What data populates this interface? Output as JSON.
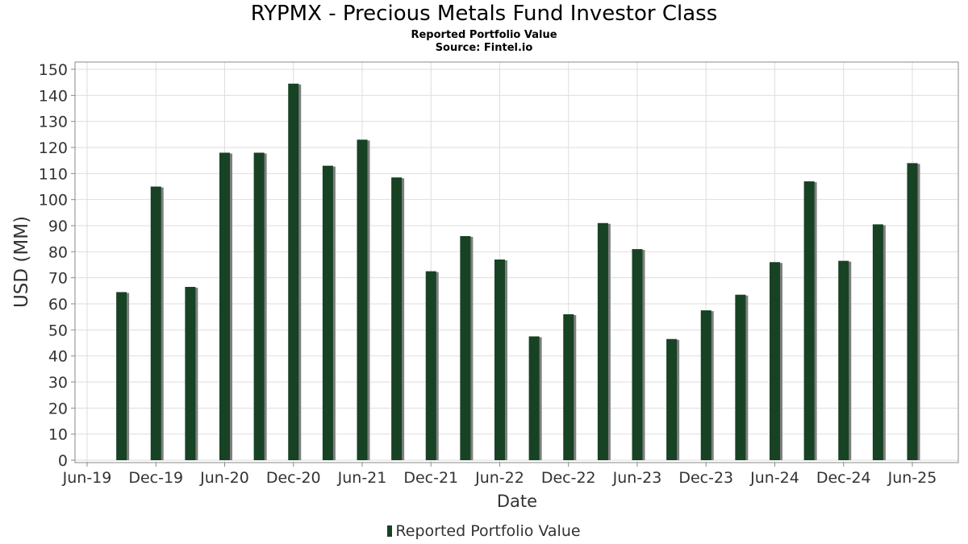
{
  "colors": {
    "bar": "#174224",
    "bar_shadow": "#7f7f7f",
    "plot_bg": "#ffffff",
    "grid": "#dedede",
    "border": "#888888",
    "text": "#333333"
  },
  "chart_data": {
    "type": "bar",
    "title": "RYPMX - Precious Metals Fund Investor Class",
    "subtitle": "Reported Portfolio Value",
    "source": "Source: Fintel.io",
    "xlabel": "Date",
    "ylabel": "USD (MM)",
    "ylim": [
      0,
      150
    ],
    "y_ticks": [
      0,
      10,
      20,
      30,
      40,
      50,
      60,
      70,
      80,
      90,
      100,
      110,
      120,
      130,
      140,
      150
    ],
    "x_ticks": [
      "Jun-19",
      "Dec-19",
      "Jun-20",
      "Dec-20",
      "Jun-21",
      "Dec-21",
      "Jun-22",
      "Dec-22",
      "Jun-23",
      "Dec-23",
      "Jun-24",
      "Dec-24",
      "Jun-25"
    ],
    "grid": true,
    "legend_position": "bottom-center",
    "series": [
      {
        "name": "Reported Portfolio Value",
        "dates": [
          "2019-09",
          "2019-12",
          "2020-03",
          "2020-06",
          "2020-09",
          "2020-12",
          "2021-03",
          "2021-06",
          "2021-09",
          "2021-12",
          "2022-03",
          "2022-06",
          "2022-09",
          "2022-12",
          "2023-03",
          "2023-06",
          "2023-09",
          "2023-12",
          "2024-03",
          "2024-06",
          "2024-09",
          "2024-12",
          "2025-03",
          "2025-06"
        ],
        "values": [
          64.5,
          105,
          66.5,
          118,
          118,
          144.5,
          113,
          123,
          108.5,
          72.5,
          86,
          77,
          47.5,
          56,
          91,
          81,
          46.5,
          57.5,
          63.5,
          76,
          107,
          76.5,
          90.5,
          114
        ]
      }
    ]
  }
}
